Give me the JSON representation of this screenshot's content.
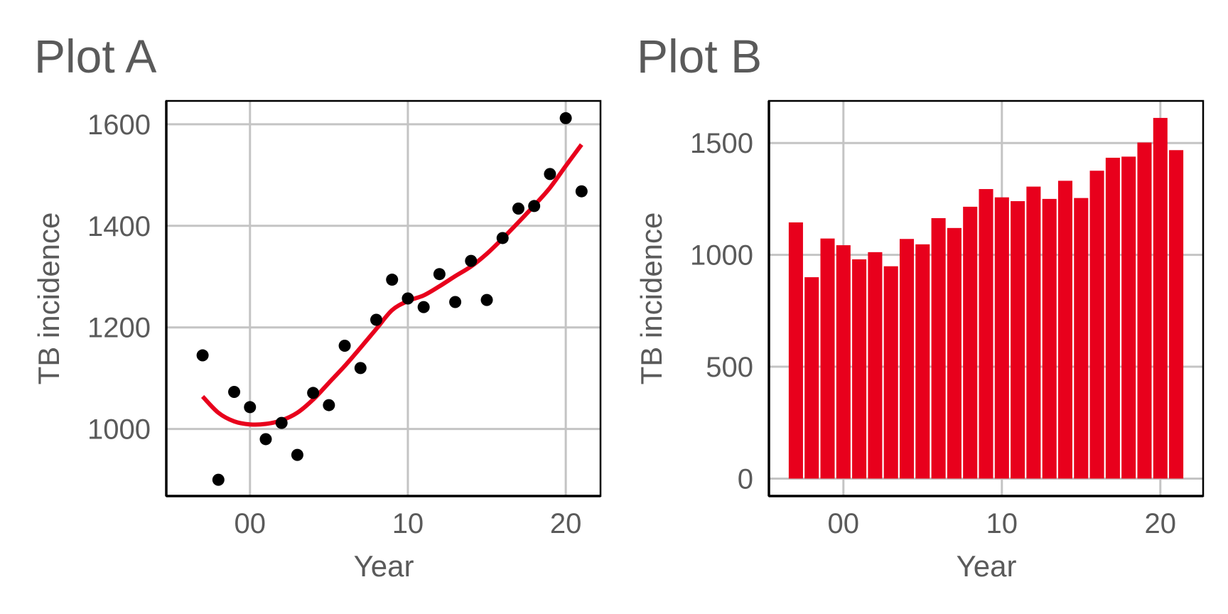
{
  "chart_data": [
    {
      "type": "scatter",
      "title": "Plot A",
      "xlabel": "Year",
      "ylabel": "TB incidence",
      "x_tick_labels": [
        "00",
        "10",
        "20"
      ],
      "x_tick_values": [
        2000,
        2010,
        2020
      ],
      "y_ticks": [
        1000,
        1200,
        1400,
        1600
      ],
      "xlim": [
        1994.7,
        2022.2
      ],
      "ylim": [
        868,
        1646
      ],
      "grid": true,
      "colors": {
        "points": "#000000",
        "smooth": "#e8001c"
      },
      "series": [
        {
          "type": "scatter",
          "x": [
            1997,
            1998,
            1999,
            2000,
            2001,
            2002,
            2003,
            2004,
            2005,
            2006,
            2007,
            2008,
            2009,
            2010,
            2011,
            2012,
            2013,
            2014,
            2015,
            2016,
            2017,
            2018,
            2019,
            2020,
            2021
          ],
          "y": [
            1145,
            900,
            1073,
            1043,
            980,
            1012,
            949,
            1071,
            1047,
            1164,
            1120,
            1215,
            1294,
            1257,
            1240,
            1305,
            1250,
            1331,
            1254,
            1376,
            1434,
            1439,
            1502,
            1612,
            1468
          ]
        },
        {
          "type": "line",
          "x": [
            1997,
            1998,
            1999,
            2000,
            2001,
            2002,
            2003,
            2004,
            2005,
            2006,
            2007,
            2008,
            2009,
            2010,
            2011,
            2012,
            2013,
            2014,
            2015,
            2016,
            2017,
            2018,
            2019,
            2020,
            2021
          ],
          "y": [
            1064,
            1032,
            1015,
            1009,
            1010,
            1017,
            1032,
            1058,
            1091,
            1124,
            1160,
            1197,
            1234,
            1252,
            1263,
            1281,
            1301,
            1320,
            1345,
            1375,
            1407,
            1440,
            1475,
            1518,
            1560
          ]
        }
      ]
    },
    {
      "type": "bar",
      "title": "Plot B",
      "xlabel": "Year",
      "ylabel": "TB incidence",
      "x_tick_labels": [
        "00",
        "10",
        "20"
      ],
      "x_tick_values": [
        2000,
        2010,
        2020
      ],
      "y_ticks": [
        0,
        500,
        1000,
        1500
      ],
      "xlim": [
        1995.3,
        2022.7
      ],
      "ylim": [
        -78,
        1688
      ],
      "grid": true,
      "colors": {
        "bars": "#e8001c"
      },
      "x": [
        1997,
        1998,
        1999,
        2000,
        2001,
        2002,
        2003,
        2004,
        2005,
        2006,
        2007,
        2008,
        2009,
        2010,
        2011,
        2012,
        2013,
        2014,
        2015,
        2016,
        2017,
        2018,
        2019,
        2020,
        2021
      ],
      "values": [
        1145,
        900,
        1073,
        1043,
        980,
        1012,
        949,
        1071,
        1047,
        1164,
        1120,
        1215,
        1294,
        1257,
        1240,
        1305,
        1250,
        1331,
        1254,
        1376,
        1434,
        1439,
        1502,
        1612,
        1468
      ]
    }
  ]
}
